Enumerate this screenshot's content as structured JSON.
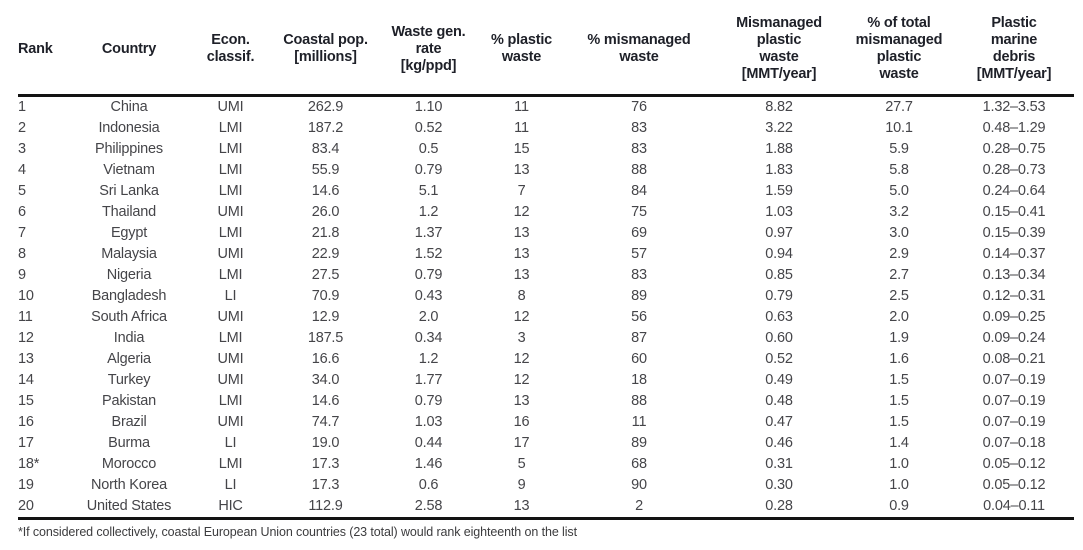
{
  "colors": {
    "background": "#ffffff",
    "rule": "#131313",
    "header_text": "#1e2028",
    "body_text": "#454549"
  },
  "table": {
    "columns": [
      {
        "id": "rank",
        "label": "Rank",
        "align": "left"
      },
      {
        "id": "country",
        "label": "Country",
        "align": "center"
      },
      {
        "id": "econ-classif",
        "label": "Econ.\nclassif.",
        "align": "center"
      },
      {
        "id": "coastal-pop",
        "label": "Coastal pop.\n[millions]",
        "align": "center"
      },
      {
        "id": "waste-gen-rate",
        "label": "Waste gen.\nrate\n[kg/ppd]",
        "align": "center"
      },
      {
        "id": "pct-plastic-waste",
        "label": "% plastic\nwaste",
        "align": "center"
      },
      {
        "id": "pct-mismanaged-waste",
        "label": "% mismanaged\nwaste",
        "align": "center"
      },
      {
        "id": "mismanaged-plastic-waste",
        "label": "Mismanaged\nplastic\nwaste\n[MMT/year]",
        "align": "center"
      },
      {
        "id": "pct-total-mismanaged",
        "label": "% of total\nmismanaged\nplastic\nwaste",
        "align": "center"
      },
      {
        "id": "plastic-marine-debris",
        "label": "Plastic\nmarine\ndebris\n[MMT/year]",
        "align": "center"
      }
    ],
    "rows": [
      [
        "1",
        "China",
        "UMI",
        "262.9",
        "1.10",
        "11",
        "76",
        "8.82",
        "27.7",
        "1.32–3.53"
      ],
      [
        "2",
        "Indonesia",
        "LMI",
        "187.2",
        "0.52",
        "11",
        "83",
        "3.22",
        "10.1",
        "0.48–1.29"
      ],
      [
        "3",
        "Philippines",
        "LMI",
        "83.4",
        "0.5",
        "15",
        "83",
        "1.88",
        "5.9",
        "0.28–0.75"
      ],
      [
        "4",
        "Vietnam",
        "LMI",
        "55.9",
        "0.79",
        "13",
        "88",
        "1.83",
        "5.8",
        "0.28–0.73"
      ],
      [
        "5",
        "Sri Lanka",
        "LMI",
        "14.6",
        "5.1",
        "7",
        "84",
        "1.59",
        "5.0",
        "0.24–0.64"
      ],
      [
        "6",
        "Thailand",
        "UMI",
        "26.0",
        "1.2",
        "12",
        "75",
        "1.03",
        "3.2",
        "0.15–0.41"
      ],
      [
        "7",
        "Egypt",
        "LMI",
        "21.8",
        "1.37",
        "13",
        "69",
        "0.97",
        "3.0",
        "0.15–0.39"
      ],
      [
        "8",
        "Malaysia",
        "UMI",
        "22.9",
        "1.52",
        "13",
        "57",
        "0.94",
        "2.9",
        "0.14–0.37"
      ],
      [
        "9",
        "Nigeria",
        "LMI",
        "27.5",
        "0.79",
        "13",
        "83",
        "0.85",
        "2.7",
        "0.13–0.34"
      ],
      [
        "10",
        "Bangladesh",
        "LI",
        "70.9",
        "0.43",
        "8",
        "89",
        "0.79",
        "2.5",
        "0.12–0.31"
      ],
      [
        "11",
        "South Africa",
        "UMI",
        "12.9",
        "2.0",
        "12",
        "56",
        "0.63",
        "2.0",
        "0.09–0.25"
      ],
      [
        "12",
        "India",
        "LMI",
        "187.5",
        "0.34",
        "3",
        "87",
        "0.60",
        "1.9",
        "0.09–0.24"
      ],
      [
        "13",
        "Algeria",
        "UMI",
        "16.6",
        "1.2",
        "12",
        "60",
        "0.52",
        "1.6",
        "0.08–0.21"
      ],
      [
        "14",
        "Turkey",
        "UMI",
        "34.0",
        "1.77",
        "12",
        "18",
        "0.49",
        "1.5",
        "0.07–0.19"
      ],
      [
        "15",
        "Pakistan",
        "LMI",
        "14.6",
        "0.79",
        "13",
        "88",
        "0.48",
        "1.5",
        "0.07–0.19"
      ],
      [
        "16",
        "Brazil",
        "UMI",
        "74.7",
        "1.03",
        "16",
        "11",
        "0.47",
        "1.5",
        "0.07–0.19"
      ],
      [
        "17",
        "Burma",
        "LI",
        "19.0",
        "0.44",
        "17",
        "89",
        "0.46",
        "1.4",
        "0.07–0.18"
      ],
      [
        "18*",
        "Morocco",
        "LMI",
        "17.3",
        "1.46",
        "5",
        "68",
        "0.31",
        "1.0",
        "0.05–0.12"
      ],
      [
        "19",
        "North Korea",
        "LI",
        "17.3",
        "0.6",
        "9",
        "90",
        "0.30",
        "1.0",
        "0.05–0.12"
      ],
      [
        "20",
        "United States",
        "HIC",
        "112.9",
        "2.58",
        "13",
        "2",
        "0.28",
        "0.9",
        "0.04–0.11"
      ]
    ],
    "footnote": "*If considered collectively, coastal European Union countries (23 total) would rank eighteenth on the list"
  }
}
